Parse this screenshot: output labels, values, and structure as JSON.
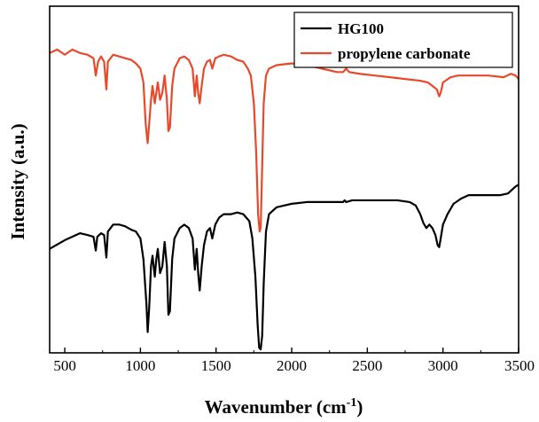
{
  "chart_data": {
    "type": "line",
    "xlabel": "Wavenumber (cm",
    "xlabel_sup": "-1",
    "xlabel_close": ")",
    "ylabel": "Intensity (a.u.)",
    "xlim": [
      400,
      3500
    ],
    "x_ticks": [
      500,
      1000,
      1500,
      2000,
      2500,
      3000,
      3500
    ],
    "x_tick_labels": [
      "500",
      "1000",
      "1500",
      "2000",
      "2500",
      "3000",
      "3500"
    ],
    "y_ticks_shown": false,
    "ylim": [
      0,
      100
    ],
    "legend_position": "top-right",
    "series": [
      {
        "name": "HG100",
        "color": "#000000",
        "points": [
          [
            400,
            30
          ],
          [
            500,
            32.5
          ],
          [
            600,
            34.5
          ],
          [
            650,
            34
          ],
          [
            690,
            33.5
          ],
          [
            705,
            29.5
          ],
          [
            715,
            33.5
          ],
          [
            740,
            34.5
          ],
          [
            760,
            34
          ],
          [
            775,
            27.5
          ],
          [
            785,
            35
          ],
          [
            820,
            37
          ],
          [
            860,
            37
          ],
          [
            900,
            36.5
          ],
          [
            940,
            35.5
          ],
          [
            970,
            35
          ],
          [
            1000,
            33
          ],
          [
            1020,
            27
          ],
          [
            1040,
            14
          ],
          [
            1048,
            6
          ],
          [
            1058,
            13
          ],
          [
            1070,
            25
          ],
          [
            1080,
            28
          ],
          [
            1095,
            22
          ],
          [
            1105,
            27
          ],
          [
            1115,
            30
          ],
          [
            1130,
            23
          ],
          [
            1145,
            25
          ],
          [
            1160,
            32
          ],
          [
            1175,
            25
          ],
          [
            1185,
            11
          ],
          [
            1195,
            12
          ],
          [
            1210,
            27
          ],
          [
            1225,
            33
          ],
          [
            1260,
            36
          ],
          [
            1290,
            37
          ],
          [
            1320,
            36
          ],
          [
            1345,
            33
          ],
          [
            1360,
            24
          ],
          [
            1372,
            30
          ],
          [
            1382,
            23
          ],
          [
            1392,
            18
          ],
          [
            1405,
            25
          ],
          [
            1420,
            31
          ],
          [
            1440,
            35
          ],
          [
            1460,
            36
          ],
          [
            1475,
            33
          ],
          [
            1495,
            37
          ],
          [
            1520,
            39
          ],
          [
            1550,
            40
          ],
          [
            1600,
            40
          ],
          [
            1640,
            40.5
          ],
          [
            1680,
            40
          ],
          [
            1700,
            39
          ],
          [
            1720,
            38
          ],
          [
            1740,
            33
          ],
          [
            1760,
            22
          ],
          [
            1775,
            8
          ],
          [
            1785,
            1.5
          ],
          [
            1795,
            1
          ],
          [
            1805,
            5
          ],
          [
            1815,
            20
          ],
          [
            1830,
            35
          ],
          [
            1850,
            40
          ],
          [
            1900,
            42
          ],
          [
            1950,
            42.5
          ],
          [
            2000,
            43
          ],
          [
            2100,
            43.5
          ],
          [
            2200,
            43.5
          ],
          [
            2300,
            43.5
          ],
          [
            2340,
            43.5
          ],
          [
            2350,
            44
          ],
          [
            2360,
            43.5
          ],
          [
            2400,
            44
          ],
          [
            2500,
            44
          ],
          [
            2600,
            44
          ],
          [
            2700,
            44
          ],
          [
            2780,
            43.5
          ],
          [
            2820,
            42.5
          ],
          [
            2850,
            40
          ],
          [
            2870,
            37.5
          ],
          [
            2890,
            36
          ],
          [
            2910,
            37
          ],
          [
            2930,
            36
          ],
          [
            2950,
            34
          ],
          [
            2965,
            31
          ],
          [
            2975,
            30.5
          ],
          [
            2985,
            33
          ],
          [
            3000,
            37
          ],
          [
            3030,
            40
          ],
          [
            3070,
            43
          ],
          [
            3120,
            44.5
          ],
          [
            3170,
            45.5
          ],
          [
            3220,
            45.5
          ],
          [
            3300,
            45.5
          ],
          [
            3380,
            45.5
          ],
          [
            3430,
            46
          ],
          [
            3480,
            48
          ],
          [
            3500,
            48.5
          ]
        ]
      },
      {
        "name": "propylene carbonate",
        "color": "#e8492a",
        "points": [
          [
            400,
            86.5
          ],
          [
            450,
            87.5
          ],
          [
            500,
            86
          ],
          [
            550,
            87.5
          ],
          [
            600,
            86.5
          ],
          [
            650,
            86
          ],
          [
            690,
            85
          ],
          [
            705,
            80
          ],
          [
            720,
            84
          ],
          [
            740,
            85.5
          ],
          [
            760,
            84
          ],
          [
            775,
            76
          ],
          [
            785,
            84
          ],
          [
            820,
            86
          ],
          [
            860,
            85.5
          ],
          [
            900,
            85
          ],
          [
            940,
            84.5
          ],
          [
            970,
            83.5
          ],
          [
            1000,
            82
          ],
          [
            1020,
            78
          ],
          [
            1035,
            66
          ],
          [
            1048,
            60.5
          ],
          [
            1058,
            66
          ],
          [
            1070,
            73
          ],
          [
            1080,
            77
          ],
          [
            1095,
            72
          ],
          [
            1105,
            75
          ],
          [
            1115,
            78
          ],
          [
            1130,
            73
          ],
          [
            1145,
            75
          ],
          [
            1160,
            80
          ],
          [
            1175,
            73
          ],
          [
            1185,
            64
          ],
          [
            1195,
            65
          ],
          [
            1210,
            77
          ],
          [
            1225,
            82
          ],
          [
            1260,
            85
          ],
          [
            1290,
            85.5
          ],
          [
            1320,
            84.5
          ],
          [
            1345,
            82
          ],
          [
            1360,
            74
          ],
          [
            1372,
            80
          ],
          [
            1382,
            75
          ],
          [
            1392,
            72
          ],
          [
            1405,
            77
          ],
          [
            1420,
            82
          ],
          [
            1440,
            84
          ],
          [
            1460,
            84.5
          ],
          [
            1475,
            82
          ],
          [
            1495,
            85
          ],
          [
            1520,
            85.5
          ],
          [
            1550,
            86
          ],
          [
            1600,
            85.5
          ],
          [
            1640,
            84.5
          ],
          [
            1680,
            84
          ],
          [
            1710,
            82
          ],
          [
            1730,
            80
          ],
          [
            1750,
            72
          ],
          [
            1765,
            58
          ],
          [
            1778,
            40
          ],
          [
            1788,
            35
          ],
          [
            1795,
            36
          ],
          [
            1805,
            54
          ],
          [
            1815,
            72
          ],
          [
            1830,
            80
          ],
          [
            1850,
            82
          ],
          [
            1900,
            83
          ],
          [
            2000,
            83.5
          ],
          [
            2100,
            83
          ],
          [
            2200,
            82
          ],
          [
            2300,
            81
          ],
          [
            2340,
            81
          ],
          [
            2360,
            82
          ],
          [
            2380,
            81
          ],
          [
            2450,
            80.5
          ],
          [
            2550,
            80
          ],
          [
            2650,
            79.5
          ],
          [
            2750,
            79
          ],
          [
            2850,
            78.5
          ],
          [
            2900,
            78
          ],
          [
            2930,
            77
          ],
          [
            2960,
            76
          ],
          [
            2975,
            74
          ],
          [
            2985,
            75
          ],
          [
            3000,
            78
          ],
          [
            3050,
            79.5
          ],
          [
            3100,
            80
          ],
          [
            3200,
            80
          ],
          [
            3300,
            80
          ],
          [
            3400,
            79.5
          ],
          [
            3450,
            80.5
          ],
          [
            3480,
            80
          ],
          [
            3500,
            79
          ]
        ]
      }
    ]
  }
}
